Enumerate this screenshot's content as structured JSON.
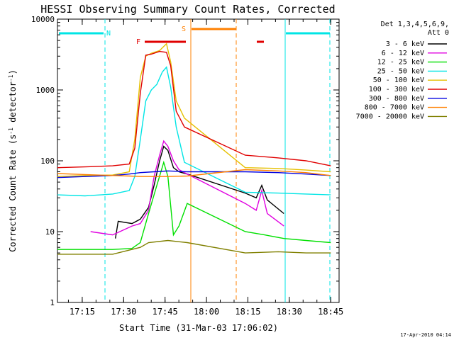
{
  "chart_data": {
    "type": "line",
    "title": "HESSI Observing Summary Count Rates, Corrected",
    "xlabel": "Start Time (31-Mar-03 17:06:02)",
    "ylabel_main": "Corrected Count Rate (s",
    "ylabel_sup1": "-1",
    "ylabel_mid": " detector",
    "ylabel_sup2": "-1",
    "ylabel_end": ")",
    "yscale": "log",
    "ylim": [
      1,
      10000
    ],
    "xlim_minutes": [
      0,
      102
    ],
    "x_tick_labels": [
      "17:15",
      "17:30",
      "17:45",
      "18:00",
      "18:15",
      "18:30",
      "18:45"
    ],
    "x_tick_minutes": [
      8.97,
      23.97,
      38.97,
      53.97,
      68.97,
      83.97,
      98.97
    ],
    "y_tick_labels": [
      "1",
      "10",
      "100",
      "1000",
      "10000"
    ],
    "y_tick_values": [
      1,
      10,
      100,
      1000,
      10000
    ],
    "timestamp": "17-Apr-2010 04:14",
    "legend_title_1": "Det 1,3,4,5,6,9,",
    "legend_title_2": "Att 0",
    "flags": [
      {
        "label": "N",
        "color": "#00e5e5"
      },
      {
        "label": "F",
        "color": "#e00000"
      },
      {
        "label": "S",
        "color": "#ff8000"
      }
    ],
    "series": [
      {
        "name": "3 - 6 keV",
        "color": "#000000",
        "points": [
          [
            21,
            8
          ],
          [
            22,
            14
          ],
          [
            27,
            13
          ],
          [
            30,
            15
          ],
          [
            33,
            22
          ],
          [
            35,
            45
          ],
          [
            37,
            100
          ],
          [
            38.5,
            160
          ],
          [
            40,
            140
          ],
          [
            42,
            80
          ],
          [
            44,
            70
          ],
          [
            47,
            65
          ],
          [
            68,
            35
          ],
          [
            72,
            30
          ],
          [
            74,
            45
          ],
          [
            76,
            28
          ],
          [
            82,
            18
          ]
        ]
      },
      {
        "name": "6 - 12 keV",
        "color": "#e000e0",
        "points": [
          [
            12,
            10
          ],
          [
            20,
            9
          ],
          [
            27,
            12
          ],
          [
            30,
            13
          ],
          [
            33,
            20
          ],
          [
            35,
            60
          ],
          [
            37,
            120
          ],
          [
            38.5,
            190
          ],
          [
            40,
            160
          ],
          [
            42,
            100
          ],
          [
            44,
            75
          ],
          [
            47,
            65
          ],
          [
            68,
            25
          ],
          [
            72,
            20
          ],
          [
            74,
            38
          ],
          [
            76,
            18
          ],
          [
            82,
            12
          ]
        ]
      },
      {
        "name": "12 - 25 keV",
        "color": "#00e000",
        "points": [
          [
            0,
            5.6
          ],
          [
            10,
            5.6
          ],
          [
            20,
            5.6
          ],
          [
            27,
            5.8
          ],
          [
            30,
            7
          ],
          [
            33,
            18
          ],
          [
            36,
            45
          ],
          [
            38.5,
            95
          ],
          [
            40,
            60
          ],
          [
            42,
            9
          ],
          [
            44,
            12
          ],
          [
            47,
            25
          ],
          [
            68,
            10
          ],
          [
            75,
            9
          ],
          [
            82,
            8
          ],
          [
            90,
            7.5
          ],
          [
            99,
            7
          ]
        ]
      },
      {
        "name": "25 - 50 keV",
        "color": "#00e5e5",
        "points": [
          [
            0,
            33
          ],
          [
            10,
            32
          ],
          [
            20,
            34
          ],
          [
            26,
            38
          ],
          [
            28,
            60
          ],
          [
            30,
            200
          ],
          [
            32,
            700
          ],
          [
            34,
            1000
          ],
          [
            36,
            1200
          ],
          [
            38,
            1800
          ],
          [
            39.5,
            2100
          ],
          [
            41,
            1100
          ],
          [
            43,
            300
          ],
          [
            46,
            95
          ],
          [
            68,
            36
          ],
          [
            80,
            35
          ],
          [
            90,
            34
          ],
          [
            99,
            33
          ]
        ]
      },
      {
        "name": "50 - 100 keV",
        "color": "#e5c000",
        "points": [
          [
            0,
            60
          ],
          [
            10,
            62
          ],
          [
            20,
            63
          ],
          [
            26,
            70
          ],
          [
            28,
            200
          ],
          [
            30,
            1500
          ],
          [
            32,
            3000
          ],
          [
            34,
            3300
          ],
          [
            37,
            3600
          ],
          [
            39.5,
            4500
          ],
          [
            41,
            2500
          ],
          [
            43,
            700
          ],
          [
            46,
            400
          ],
          [
            68,
            80
          ],
          [
            80,
            78
          ],
          [
            90,
            74
          ],
          [
            99,
            70
          ]
        ]
      },
      {
        "name": "100 - 300 keV",
        "color": "#e00000",
        "points": [
          [
            0,
            80
          ],
          [
            10,
            82
          ],
          [
            20,
            85
          ],
          [
            26,
            90
          ],
          [
            28,
            150
          ],
          [
            30,
            900
          ],
          [
            32,
            3100
          ],
          [
            34,
            3200
          ],
          [
            37,
            3500
          ],
          [
            39.5,
            3400
          ],
          [
            41,
            2200
          ],
          [
            43,
            500
          ],
          [
            46,
            300
          ],
          [
            68,
            120
          ],
          [
            80,
            110
          ],
          [
            90,
            100
          ],
          [
            99,
            85
          ]
        ]
      },
      {
        "name": "300 - 800 keV",
        "color": "#0000e0",
        "points": [
          [
            0,
            58
          ],
          [
            10,
            60
          ],
          [
            20,
            62
          ],
          [
            26,
            65
          ],
          [
            30,
            68
          ],
          [
            35,
            70
          ],
          [
            40,
            72
          ],
          [
            47,
            70
          ],
          [
            68,
            70
          ],
          [
            80,
            68
          ],
          [
            90,
            65
          ],
          [
            99,
            62
          ]
        ]
      },
      {
        "name": "800 - 7000 keV",
        "color": "#ff8000",
        "points": [
          [
            0,
            66
          ],
          [
            10,
            64
          ],
          [
            20,
            62
          ],
          [
            26,
            61
          ],
          [
            30,
            60
          ],
          [
            40,
            60
          ],
          [
            47,
            61
          ],
          [
            68,
            75
          ],
          [
            80,
            72
          ],
          [
            90,
            68
          ],
          [
            99,
            62
          ]
        ]
      },
      {
        "name": "7000 - 20000 keV",
        "color": "#808000",
        "points": [
          [
            0,
            4.8
          ],
          [
            10,
            4.8
          ],
          [
            20,
            4.8
          ],
          [
            30,
            6
          ],
          [
            33,
            7
          ],
          [
            40,
            7.5
          ],
          [
            47,
            7
          ],
          [
            68,
            5
          ],
          [
            80,
            5.2
          ],
          [
            90,
            5
          ],
          [
            99,
            5
          ]
        ]
      }
    ]
  }
}
